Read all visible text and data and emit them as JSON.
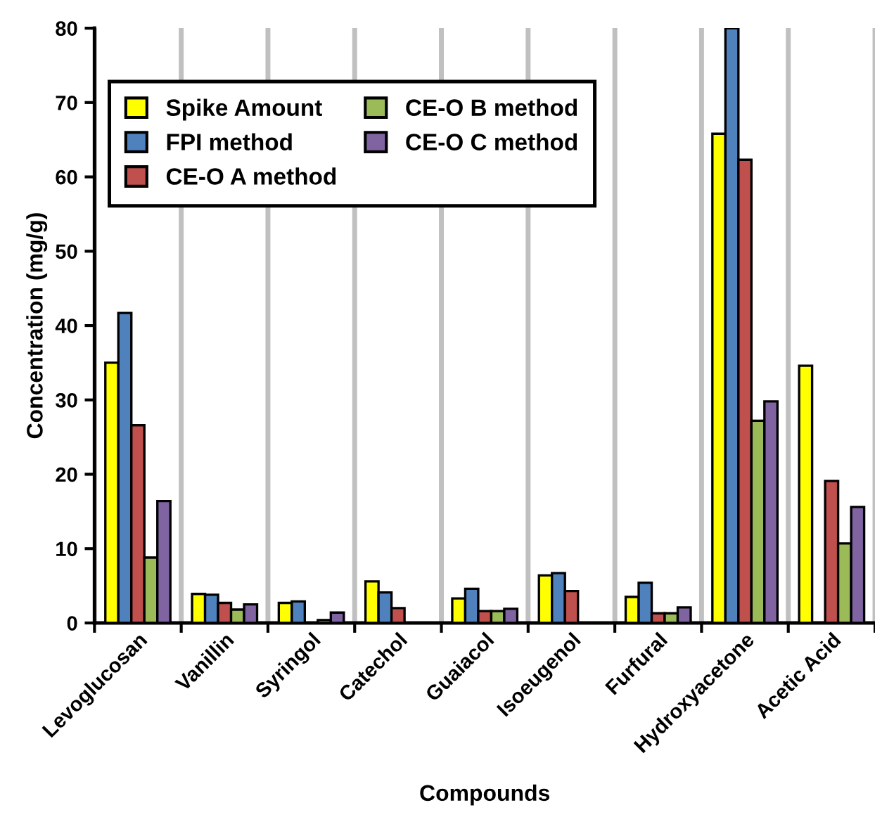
{
  "chart_data": {
    "type": "bar",
    "xlabel": "Compounds",
    "ylabel": "Concentration (mg/g)",
    "categories": [
      "Levoglucosan",
      "Vanillin",
      "Syringol",
      "Catechol",
      "Guaiacol",
      "Isoeugenol",
      "Furfural",
      "Hydroxyacetone",
      "Acetic Acid"
    ],
    "series": [
      {
        "name": "Spike Amount",
        "color": "#ffff00",
        "values": [
          35,
          3.9,
          2.7,
          5.6,
          3.3,
          6.4,
          3.5,
          65.8,
          34.6
        ]
      },
      {
        "name": "FPI method",
        "color": "#4f81bd",
        "values": [
          41.7,
          3.8,
          2.9,
          4.1,
          4.6,
          6.7,
          5.4,
          80,
          null
        ]
      },
      {
        "name": "CE-O A method",
        "color": "#c0504d",
        "values": [
          26.6,
          2.7,
          null,
          2.0,
          1.6,
          4.3,
          1.3,
          62.3,
          19.1
        ]
      },
      {
        "name": "CE-O B method",
        "color": "#9bbb59",
        "values": [
          8.8,
          1.8,
          0.4,
          null,
          1.6,
          null,
          1.3,
          27.2,
          10.7
        ]
      },
      {
        "name": "CE-O C method",
        "color": "#8064a2",
        "values": [
          16.4,
          2.5,
          1.4,
          null,
          1.9,
          null,
          2.1,
          29.8,
          15.6
        ]
      }
    ],
    "ylim": [
      0,
      80
    ],
    "yticks": [
      0,
      10,
      20,
      30,
      40,
      50,
      60,
      70,
      80
    ],
    "grid": "x",
    "legend": "top"
  }
}
